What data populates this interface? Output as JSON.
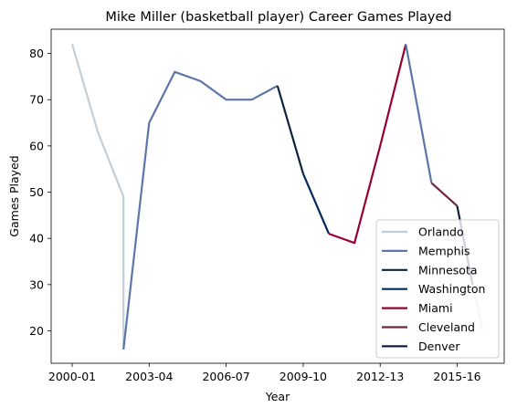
{
  "chart_data": {
    "type": "line",
    "title": "Mike Miller (basketball player) Career Games Played",
    "xlabel": "Year",
    "ylabel": "Games Played",
    "xlim": [
      0,
      17
    ],
    "ylim": [
      13,
      86
    ],
    "grid": false,
    "legend_position": "lower-right",
    "x_ticks": [
      0,
      3,
      6,
      9,
      12,
      15
    ],
    "x_tick_labels": [
      "2000-01",
      "2003-04",
      "2006-07",
      "2009-10",
      "2012-13",
      "2015-16"
    ],
    "y_ticks": [
      20,
      30,
      40,
      50,
      60,
      70,
      80
    ],
    "y_tick_labels": [
      "20",
      "30",
      "40",
      "50",
      "60",
      "70",
      "80"
    ],
    "series": [
      {
        "name": "Orlando",
        "color": "#c4ced4",
        "points": [
          [
            0,
            82
          ],
          [
            1,
            63
          ],
          [
            2,
            49
          ],
          [
            2,
            16
          ]
        ]
      },
      {
        "name": "Memphis",
        "color": "#5d76a9",
        "points": [
          [
            2,
            16
          ],
          [
            3,
            65
          ],
          [
            4,
            76
          ],
          [
            5,
            74
          ],
          [
            6,
            70
          ],
          [
            7,
            70
          ],
          [
            8,
            73
          ]
        ]
      },
      {
        "name": "Minnesota",
        "color": "#0c2340",
        "points": [
          [
            8,
            73
          ],
          [
            9,
            54
          ]
        ]
      },
      {
        "name": "Washington",
        "color": "#002b5c",
        "points": [
          [
            9,
            54
          ],
          [
            10,
            41
          ]
        ]
      },
      {
        "name": "Miami",
        "color": "#98002e",
        "points": [
          [
            10,
            41
          ],
          [
            11,
            39
          ],
          [
            12,
            60
          ],
          [
            13,
            82
          ]
        ]
      },
      {
        "name": "Memphis",
        "color": "#5d76a9",
        "points": [
          [
            13,
            82
          ],
          [
            14,
            52
          ]
        ]
      },
      {
        "name": "Cleveland",
        "color": "#6f263d",
        "points": [
          [
            14,
            52
          ],
          [
            15,
            47
          ]
        ]
      },
      {
        "name": "Denver",
        "color": "#0e2240",
        "points": [
          [
            15,
            47
          ],
          [
            15.6,
            30
          ]
        ]
      },
      {
        "name": "Orlando",
        "color": "#c4ced4",
        "points": [
          [
            15.6,
            30
          ],
          [
            16,
            20
          ]
        ]
      }
    ],
    "legend": [
      {
        "label": "Orlando",
        "color": "#c4ced4"
      },
      {
        "label": "Memphis",
        "color": "#5d76a9"
      },
      {
        "label": "Minnesota",
        "color": "#0c2340"
      },
      {
        "label": "Washington",
        "color": "#002b5c"
      },
      {
        "label": "Miami",
        "color": "#98002e"
      },
      {
        "label": "Cleveland",
        "color": "#6f263d"
      },
      {
        "label": "Denver",
        "color": "#0e2240"
      }
    ]
  }
}
